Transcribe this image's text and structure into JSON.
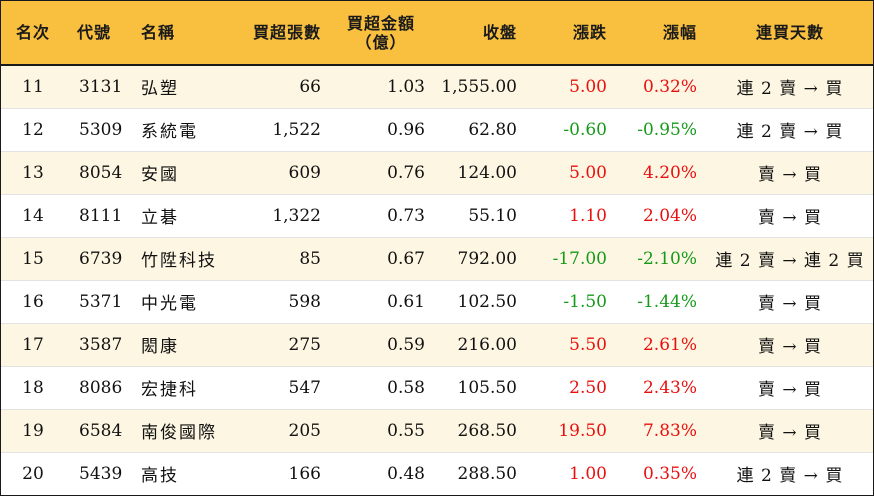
{
  "colors": {
    "header_bg": "#f9c040",
    "row_alt_bg": "#fdf6e2",
    "up": "#e8100f",
    "down": "#169a1a"
  },
  "headers": {
    "rank": "名次",
    "code": "代號",
    "name": "名稱",
    "volume": "買超張數",
    "amount_line1": "買超金額",
    "amount_line2": "（億）",
    "close": "收盤",
    "change": "漲跌",
    "pct": "漲幅",
    "days": "連買天數"
  },
  "rows": [
    {
      "rank": "11",
      "code": "3131",
      "name": "弘塑",
      "volume": "66",
      "amount": "1.03",
      "close": "1,555.00",
      "change": "5.00",
      "pct": "0.32%",
      "days": "連 2 賣 → 買",
      "dir": "up"
    },
    {
      "rank": "12",
      "code": "5309",
      "name": "系統電",
      "volume": "1,522",
      "amount": "0.96",
      "close": "62.80",
      "change": "-0.60",
      "pct": "-0.95%",
      "days": "連 2 賣 → 買",
      "dir": "down"
    },
    {
      "rank": "13",
      "code": "8054",
      "name": "安國",
      "volume": "609",
      "amount": "0.76",
      "close": "124.00",
      "change": "5.00",
      "pct": "4.20%",
      "days": "賣 → 買",
      "dir": "up"
    },
    {
      "rank": "14",
      "code": "8111",
      "name": "立碁",
      "volume": "1,322",
      "amount": "0.73",
      "close": "55.10",
      "change": "1.10",
      "pct": "2.04%",
      "days": "賣 → 買",
      "dir": "up"
    },
    {
      "rank": "15",
      "code": "6739",
      "name": "竹陞科技",
      "volume": "85",
      "amount": "0.67",
      "close": "792.00",
      "change": "-17.00",
      "pct": "-2.10%",
      "days": "連 2 賣 → 連 2 買",
      "dir": "down"
    },
    {
      "rank": "16",
      "code": "5371",
      "name": "中光電",
      "volume": "598",
      "amount": "0.61",
      "close": "102.50",
      "change": "-1.50",
      "pct": "-1.44%",
      "days": "賣 → 買",
      "dir": "down"
    },
    {
      "rank": "17",
      "code": "3587",
      "name": "閎康",
      "volume": "275",
      "amount": "0.59",
      "close": "216.00",
      "change": "5.50",
      "pct": "2.61%",
      "days": "賣 → 買",
      "dir": "up"
    },
    {
      "rank": "18",
      "code": "8086",
      "name": "宏捷科",
      "volume": "547",
      "amount": "0.58",
      "close": "105.50",
      "change": "2.50",
      "pct": "2.43%",
      "days": "賣 → 買",
      "dir": "up"
    },
    {
      "rank": "19",
      "code": "6584",
      "name": "南俊國際",
      "volume": "205",
      "amount": "0.55",
      "close": "268.50",
      "change": "19.50",
      "pct": "7.83%",
      "days": "賣 → 買",
      "dir": "up"
    },
    {
      "rank": "20",
      "code": "5439",
      "name": "高技",
      "volume": "166",
      "amount": "0.48",
      "close": "288.50",
      "change": "1.00",
      "pct": "0.35%",
      "days": "連 2 賣 → 買",
      "dir": "up"
    }
  ]
}
